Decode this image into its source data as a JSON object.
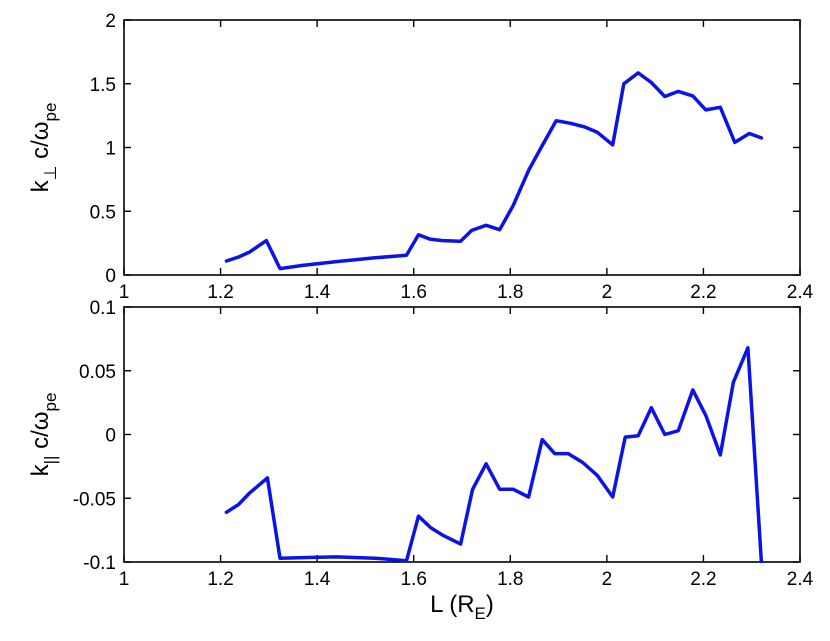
{
  "chart_data": [
    {
      "type": "line",
      "ylabel_main": "k",
      "ylabel_sub": "⊥",
      "ylabel_rest": " c/ω",
      "ylabel_rest_sub": "pe",
      "xlim": [
        1,
        2.4
      ],
      "ylim": [
        0,
        2
      ],
      "xticks": [
        "1",
        "1.2",
        "1.4",
        "1.6",
        "1.8",
        "2",
        "2.2",
        "2.4"
      ],
      "yticks": [
        "0",
        "0.5",
        "1",
        "1.5",
        "2"
      ],
      "grid": false,
      "color": "#0a14e6",
      "x": [
        1.212,
        1.237,
        1.26,
        1.295,
        1.323,
        1.37,
        1.44,
        1.52,
        1.585,
        1.61,
        1.635,
        1.66,
        1.697,
        1.72,
        1.75,
        1.778,
        1.806,
        1.838,
        1.866,
        1.895,
        1.925,
        1.955,
        1.98,
        2.012,
        2.035,
        2.065,
        2.092,
        2.12,
        2.148,
        2.178,
        2.205,
        2.235,
        2.265,
        2.295,
        2.32
      ],
      "y": [
        0.11,
        0.14,
        0.18,
        0.27,
        0.05,
        0.075,
        0.105,
        0.135,
        0.155,
        0.315,
        0.28,
        0.27,
        0.265,
        0.35,
        0.39,
        0.355,
        0.545,
        0.82,
        1.015,
        1.21,
        1.19,
        1.16,
        1.12,
        1.02,
        1.5,
        1.585,
        1.51,
        1.4,
        1.44,
        1.405,
        1.295,
        1.315,
        1.04,
        1.11,
        1.075
      ]
    },
    {
      "type": "line",
      "ylabel_main": "k",
      "ylabel_sub": "||",
      "ylabel_rest": " c/ω",
      "ylabel_rest_sub": "pe",
      "xlabel": "L (R",
      "xlabel_sub": "E",
      "xlabel_end": ")",
      "xlim": [
        1,
        2.4
      ],
      "ylim": [
        -0.1,
        0.1
      ],
      "xticks": [
        "1",
        "1.2",
        "1.4",
        "1.6",
        "1.8",
        "2",
        "2.2",
        "2.4"
      ],
      "yticks": [
        "-0.1",
        "-0.05",
        "0",
        "0.05",
        "0.1"
      ],
      "grid": false,
      "color": "#0a14e6",
      "x": [
        1.212,
        1.237,
        1.26,
        1.297,
        1.323,
        1.38,
        1.44,
        1.52,
        1.585,
        1.61,
        1.635,
        1.66,
        1.697,
        1.722,
        1.75,
        1.778,
        1.806,
        1.838,
        1.866,
        1.892,
        1.92,
        1.95,
        1.98,
        2.012,
        2.038,
        2.065,
        2.092,
        2.12,
        2.148,
        2.178,
        2.205,
        2.235,
        2.262,
        2.292,
        2.32
      ],
      "y": [
        -0.061,
        -0.055,
        -0.046,
        -0.034,
        -0.097,
        -0.0965,
        -0.096,
        -0.097,
        -0.099,
        -0.064,
        -0.073,
        -0.079,
        -0.086,
        -0.043,
        -0.023,
        -0.043,
        -0.043,
        -0.049,
        -0.004,
        -0.015,
        -0.015,
        -0.022,
        -0.032,
        -0.049,
        -0.002,
        -0.001,
        0.021,
        0.0,
        0.003,
        0.035,
        0.015,
        -0.016,
        0.041,
        0.068,
        -0.1
      ]
    }
  ]
}
